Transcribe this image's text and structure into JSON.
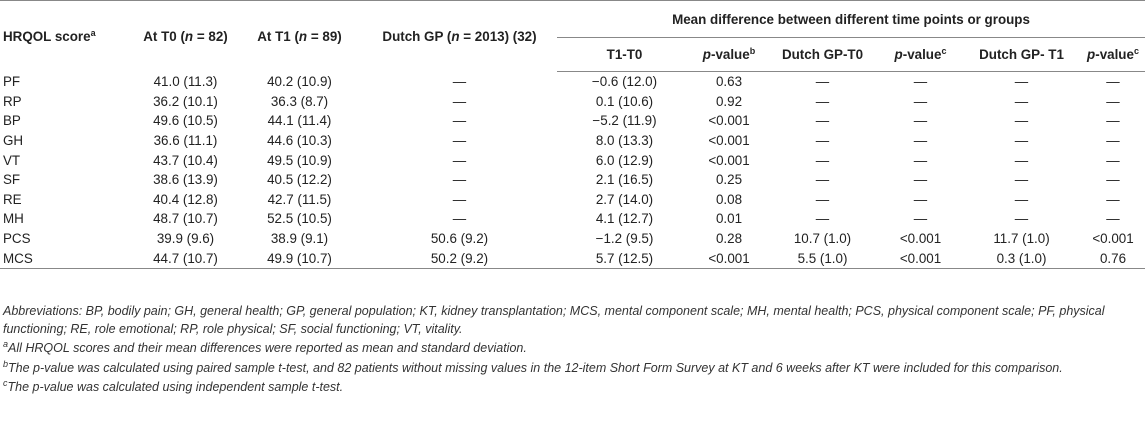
{
  "header": {
    "col1": "HRQOL score",
    "col1_sup": "a",
    "t0_prefix": "At T0 (",
    "t0_n": "n",
    "t0_suffix": " = 82)",
    "t1_prefix": "At T1 (",
    "t1_n": "n",
    "t1_suffix": " = 89)",
    "gp_prefix": "Dutch GP (",
    "gp_n": "n",
    "gp_suffix": " = 2013) (32)",
    "span_title": "Mean difference between different time points or groups",
    "sub_t1t0": "T1-T0",
    "sub_p_label": "p",
    "sub_p_suffix": "-value",
    "sub_p1_sup": "b",
    "sub_dgp_t0": "Dutch GP-T0",
    "sub_p2_sup": "c",
    "sub_dgp_t1": "Dutch GP- T1",
    "sub_p3_sup": "c"
  },
  "rows": [
    {
      "label": "PF",
      "t0": "41.0 (11.3)",
      "t1": "40.2 (10.9)",
      "gp": "—",
      "d10": "−0.6 (12.0)",
      "p1": "0.63",
      "dg0": "—",
      "p2": "—",
      "dg1": "—",
      "p3": "—"
    },
    {
      "label": "RP",
      "t0": "36.2 (10.1)",
      "t1": "36.3 (8.7)",
      "gp": "—",
      "d10": "0.1 (10.6)",
      "p1": "0.92",
      "dg0": "—",
      "p2": "—",
      "dg1": "—",
      "p3": "—"
    },
    {
      "label": "BP",
      "t0": "49.6 (10.5)",
      "t1": "44.1 (11.4)",
      "gp": "—",
      "d10": "−5.2 (11.9)",
      "p1": "<0.001",
      "dg0": "—",
      "p2": "—",
      "dg1": "—",
      "p3": "—"
    },
    {
      "label": "GH",
      "t0": "36.6 (11.1)",
      "t1": "44.6 (10.3)",
      "gp": "—",
      "d10": "8.0 (13.3)",
      "p1": "<0.001",
      "dg0": "—",
      "p2": "—",
      "dg1": "—",
      "p3": "—"
    },
    {
      "label": "VT",
      "t0": "43.7 (10.4)",
      "t1": "49.5 (10.9)",
      "gp": "—",
      "d10": "6.0 (12.9)",
      "p1": "<0.001",
      "dg0": "—",
      "p2": "—",
      "dg1": "—",
      "p3": "—"
    },
    {
      "label": "SF",
      "t0": "38.6 (13.9)",
      "t1": "40.5 (12.2)",
      "gp": "—",
      "d10": "2.1 (16.5)",
      "p1": "0.25",
      "dg0": "—",
      "p2": "—",
      "dg1": "—",
      "p3": "—"
    },
    {
      "label": "RE",
      "t0": "40.4 (12.8)",
      "t1": "42.7 (11.5)",
      "gp": "—",
      "d10": "2.7 (14.0)",
      "p1": "0.08",
      "dg0": "—",
      "p2": "—",
      "dg1": "—",
      "p3": "—"
    },
    {
      "label": "MH",
      "t0": "48.7 (10.7)",
      "t1": "52.5 (10.5)",
      "gp": "—",
      "d10": "4.1 (12.7)",
      "p1": "0.01",
      "dg0": "—",
      "p2": "—",
      "dg1": "—",
      "p3": "—"
    },
    {
      "label": "PCS",
      "t0": "39.9 (9.6)",
      "t1": "38.9 (9.1)",
      "gp": "50.6 (9.2)",
      "d10": "−1.2 (9.5)",
      "p1": "0.28",
      "dg0": "10.7 (1.0)",
      "p2": "<0.001",
      "dg1": "11.7 (1.0)",
      "p3": "<0.001"
    },
    {
      "label": "MCS",
      "t0": "44.7 (10.7)",
      "t1": "49.9 (10.7)",
      "gp": "50.2 (9.2)",
      "d10": "5.7 (12.5)",
      "p1": "<0.001",
      "dg0": "5.5 (1.0)",
      "p2": "<0.001",
      "dg1": "0.3 (1.0)",
      "p3": "0.76"
    }
  ],
  "notes": {
    "abbreviations": "Abbreviations: BP, bodily pain; GH, general health; GP, general population; KT, kidney transplantation; MCS, mental component scale; MH, mental health; PCS, physical component scale; PF, physical functioning; RE, role emotional; RP, role physical; SF, social functioning; VT, vitality.",
    "note_a_sup": "a",
    "note_a": "All HRQOL scores and their mean differences were reported as mean and standard deviation.",
    "note_b_sup": "b",
    "note_b": "The p-value was calculated using paired sample t-test, and 82 patients without missing values in the 12-item Short Form Survey at KT and 6 weeks after KT were included for this comparison.",
    "note_c_sup": "c",
    "note_c": "The p-value was calculated using independent sample t-test."
  }
}
